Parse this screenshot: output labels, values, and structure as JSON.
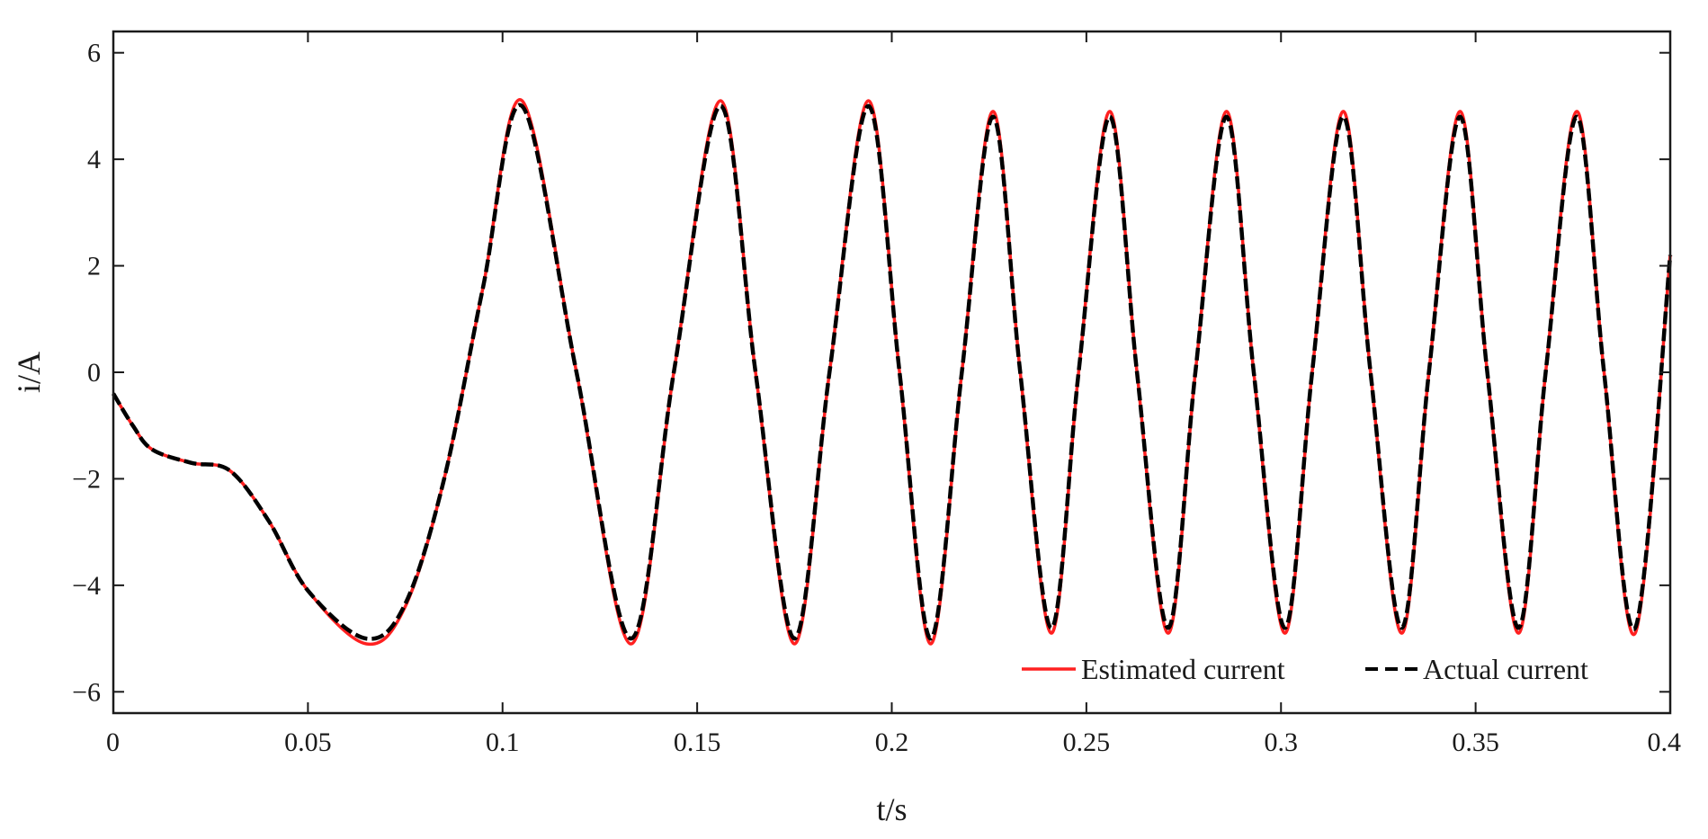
{
  "chart_data": {
    "type": "line",
    "title": "",
    "xlabel": "t/s",
    "ylabel": "i/A",
    "xlim": [
      0,
      0.4
    ],
    "ylim": [
      -6.4,
      6.4
    ],
    "x_ticks": [
      0,
      0.05,
      0.1,
      0.15,
      0.2,
      0.25,
      0.3,
      0.35,
      0.4
    ],
    "x_tick_labels": [
      "0",
      "0.05",
      "0.1",
      "0.15",
      "0.2",
      "0.25",
      "0.3",
      "0.35",
      "0.4"
    ],
    "y_ticks": [
      -6,
      -4,
      -2,
      0,
      2,
      4,
      6
    ],
    "y_tick_labels": [
      "−6",
      "−4",
      "−2",
      "0",
      "2",
      "4",
      "6"
    ],
    "grid": false,
    "legend_position": "bottom-right",
    "series": [
      {
        "name": "Estimated current",
        "color": "#ff2020",
        "style": "solid",
        "x": [
          0,
          0.005,
          0.01,
          0.02,
          0.03,
          0.04,
          0.05,
          0.065,
          0.075,
          0.085,
          0.095,
          0.105,
          0.119,
          0.133,
          0.144,
          0.156,
          0.165,
          0.175,
          0.184,
          0.194,
          0.202,
          0.21,
          0.218,
          0.226,
          0.233,
          0.241,
          0.248,
          0.256,
          0.263,
          0.271,
          0.278,
          0.286,
          0.293,
          0.301,
          0.308,
          0.316,
          0.323,
          0.331,
          0.338,
          0.346,
          0.353,
          0.361,
          0.368,
          0.376,
          0.383,
          0.391,
          0.4
        ],
        "y": [
          -0.4,
          -1.0,
          -1.45,
          -1.7,
          -1.85,
          -2.8,
          -4.1,
          -5.1,
          -4.4,
          -2.0,
          1.6,
          5.1,
          0.0,
          -5.1,
          0.0,
          5.1,
          0.0,
          -5.1,
          0.0,
          5.1,
          0.0,
          -5.1,
          0.0,
          4.9,
          0.0,
          -4.9,
          0.0,
          4.9,
          0.0,
          -4.9,
          0.0,
          4.9,
          0.0,
          -4.9,
          0.0,
          4.9,
          0.0,
          -4.9,
          0.0,
          4.9,
          0.0,
          -4.9,
          0.0,
          4.9,
          0.0,
          -4.9,
          2.2
        ]
      },
      {
        "name": "Actual current",
        "color": "#000000",
        "style": "dashed",
        "x": [
          0,
          0.005,
          0.01,
          0.02,
          0.03,
          0.04,
          0.05,
          0.065,
          0.075,
          0.085,
          0.095,
          0.105,
          0.119,
          0.133,
          0.144,
          0.156,
          0.165,
          0.175,
          0.184,
          0.194,
          0.202,
          0.21,
          0.218,
          0.226,
          0.233,
          0.241,
          0.248,
          0.256,
          0.263,
          0.271,
          0.278,
          0.286,
          0.293,
          0.301,
          0.308,
          0.316,
          0.323,
          0.331,
          0.338,
          0.346,
          0.353,
          0.361,
          0.368,
          0.376,
          0.383,
          0.391,
          0.4
        ],
        "y": [
          -0.4,
          -1.0,
          -1.45,
          -1.7,
          -1.85,
          -2.8,
          -4.1,
          -5.0,
          -4.35,
          -2.0,
          1.6,
          5.0,
          0.0,
          -5.0,
          0.0,
          5.0,
          0.0,
          -5.0,
          0.0,
          5.0,
          0.0,
          -5.0,
          0.0,
          4.8,
          0.0,
          -4.8,
          0.0,
          4.8,
          0.0,
          -4.8,
          0.0,
          4.8,
          0.0,
          -4.8,
          0.0,
          4.8,
          0.0,
          -4.8,
          0.0,
          4.8,
          0.0,
          -4.8,
          0.0,
          4.8,
          0.0,
          -4.8,
          2.2
        ]
      }
    ]
  }
}
